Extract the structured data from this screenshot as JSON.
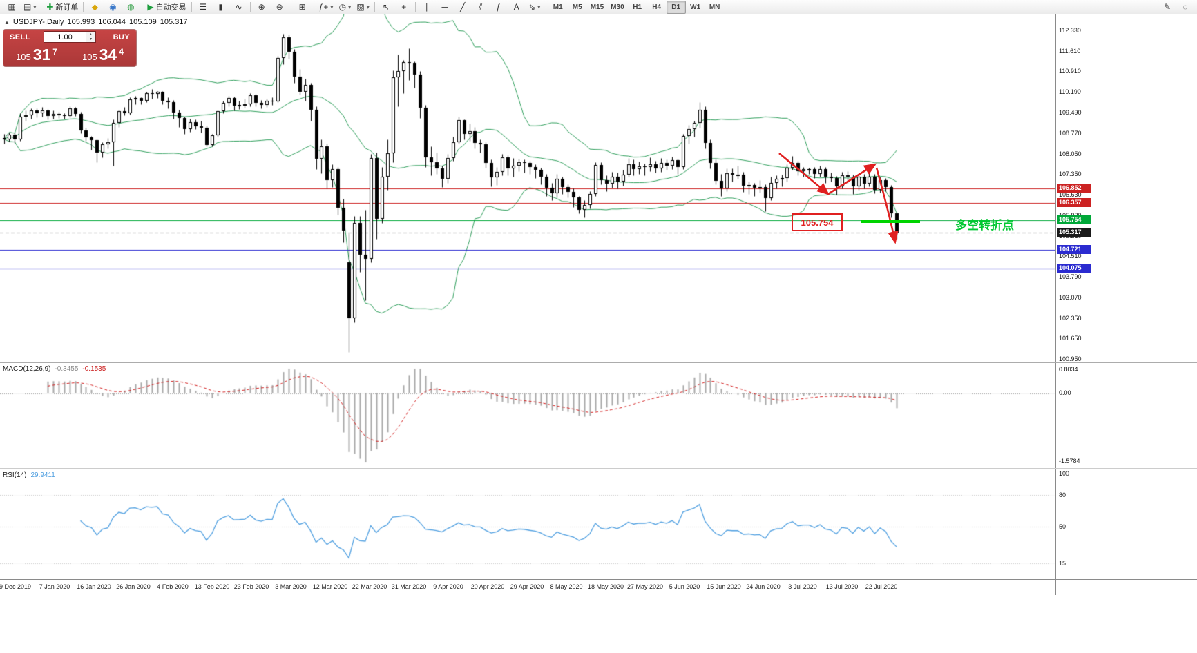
{
  "toolbar": {
    "items": [
      {
        "t": "icon",
        "name": "new-chart-icon",
        "glyph": "▦"
      },
      {
        "t": "icon",
        "name": "profiles-icon",
        "glyph": "▤",
        "caret": true
      },
      {
        "t": "sep"
      },
      {
        "t": "button",
        "name": "new-order-button",
        "glyph": "✚",
        "color": "#1e9e3e",
        "label": "新订单"
      },
      {
        "t": "sep"
      },
      {
        "t": "icon",
        "name": "market-watch-icon",
        "glyph": "◆",
        "color": "#d9a60b"
      },
      {
        "t": "icon",
        "name": "data-window-icon",
        "glyph": "◉",
        "color": "#3a78c9"
      },
      {
        "t": "icon",
        "name": "navigator-icon",
        "glyph": "◍",
        "color": "#2f9e44"
      },
      {
        "t": "sep"
      },
      {
        "t": "button",
        "name": "autotrading-button",
        "glyph": "▶",
        "color": "#1e9e3e",
        "label": "自动交易"
      },
      {
        "t": "sep"
      },
      {
        "t": "icon",
        "name": "bar-chart-icon",
        "glyph": "☰"
      },
      {
        "t": "icon",
        "name": "candlestick-chart-icon",
        "glyph": "▮"
      },
      {
        "t": "icon",
        "name": "line-chart-icon",
        "glyph": "∿"
      },
      {
        "t": "sep"
      },
      {
        "t": "icon",
        "name": "zoom-in-icon",
        "glyph": "⊕"
      },
      {
        "t": "icon",
        "name": "zoom-out-icon",
        "glyph": "⊖"
      },
      {
        "t": "sep"
      },
      {
        "t": "icon",
        "name": "tile-windows-icon",
        "glyph": "⊞"
      },
      {
        "t": "sep"
      },
      {
        "t": "icon",
        "name": "indicators-icon",
        "glyph": "ƒ+",
        "caret": true
      },
      {
        "t": "icon",
        "name": "periods-icon",
        "glyph": "◷",
        "caret": true
      },
      {
        "t": "icon",
        "name": "templates-icon",
        "glyph": "▨",
        "caret": true
      },
      {
        "t": "sep"
      },
      {
        "t": "icon",
        "name": "cursor-icon",
        "glyph": "↖"
      },
      {
        "t": "icon",
        "name": "crosshair-icon",
        "glyph": "+"
      },
      {
        "t": "sep"
      },
      {
        "t": "icon",
        "name": "vertical-line-icon",
        "glyph": "∣"
      },
      {
        "t": "icon",
        "name": "horizontal-line-icon",
        "glyph": "─"
      },
      {
        "t": "icon",
        "name": "trendline-icon",
        "glyph": "╱"
      },
      {
        "t": "icon",
        "name": "channel-icon",
        "glyph": "⫽"
      },
      {
        "t": "icon",
        "name": "fibonacci-icon",
        "glyph": "ƒ"
      },
      {
        "t": "icon",
        "name": "text-icon",
        "glyph": "A"
      },
      {
        "t": "icon",
        "name": "arrows-icon",
        "glyph": "⇘",
        "caret": true
      },
      {
        "t": "sep"
      },
      {
        "t": "tf"
      },
      {
        "t": "flex"
      },
      {
        "t": "icon",
        "name": "pencil-icon",
        "glyph": "✎"
      },
      {
        "t": "icon",
        "name": "chat-icon",
        "glyph": "◌"
      }
    ],
    "timeframes": [
      "M1",
      "M5",
      "M15",
      "M30",
      "H1",
      "H4",
      "D1",
      "W1",
      "MN"
    ],
    "active_timeframe": "D1"
  },
  "chart": {
    "collapse_glyph": "▲",
    "title": "USDJPY-,Daily",
    "ohlc": {
      "open": "105.993",
      "high": "106.044",
      "low": "105.109",
      "close": "105.317"
    },
    "bid": 105.317,
    "one_click": {
      "sell_label": "SELL",
      "buy_label": "BUY",
      "volume": "1.00",
      "spin_up": "▴",
      "spin_down": "▾",
      "sell_prefix": "105",
      "sell_big": "31",
      "sell_sup": "7",
      "buy_prefix": "105",
      "buy_big": "34",
      "buy_sup": "4"
    },
    "price_scale": [
      "112.330",
      "111.610",
      "110.910",
      "110.190",
      "109.490",
      "108.770",
      "108.050",
      "107.350",
      "106.630",
      "105.930",
      "105.210",
      "104.510",
      "103.790",
      "103.070",
      "102.350",
      "101.650",
      "100.950"
    ],
    "price_boxes": [
      {
        "label": "106.852",
        "price": 106.852,
        "color": "#cc2222"
      },
      {
        "label": "106.357",
        "price": 106.357,
        "color": "#cc2222"
      },
      {
        "label": "105.754",
        "price": 105.754,
        "color": "#00a838"
      },
      {
        "label": "105.317",
        "price": 105.317,
        "color": "#1a1a1a"
      },
      {
        "label": "104.721",
        "price": 104.721,
        "color": "#2b2bd0"
      },
      {
        "label": "104.075",
        "price": 104.075,
        "color": "#2b2bd0"
      }
    ],
    "hlines": [
      {
        "price": 106.852,
        "color": "#cc2222"
      },
      {
        "price": 106.357,
        "color": "#cc2222"
      },
      {
        "price": 105.754,
        "color": "#00a838"
      },
      {
        "price": 104.721,
        "color": "#2b2bd0"
      },
      {
        "price": 104.075,
        "color": "#2b2bd0"
      }
    ],
    "annotations": {
      "price_label": "105.754",
      "note_label": "多空转折点"
    },
    "dates": [
      "9 Dec 2019",
      "7 Jan 2020",
      "16 Jan 2020",
      "26 Jan 2020",
      "4 Feb 2020",
      "13 Feb 2020",
      "23 Feb 2020",
      "3 Mar 2020",
      "12 Mar 2020",
      "22 Mar 2020",
      "31 Mar 2020",
      "9 Apr 2020",
      "20 Apr 2020",
      "29 Apr 2020",
      "8 May 2020",
      "18 May 2020",
      "27 May 2020",
      "5 Jun 2020",
      "15 Jun 2020",
      "24 Jun 2020",
      "3 Jul 2020",
      "13 Jul 2020",
      "22 Jul 2020"
    ]
  },
  "macd": {
    "name": "MACD(12,26,9)",
    "value_main": "-0.3455",
    "value_signal": "-0.1535",
    "scale": [
      "0.8034",
      "0.00",
      "-1.5784"
    ]
  },
  "rsi": {
    "name": "RSI(14)",
    "value": "29.9411",
    "scale": [
      "100",
      "80",
      "50",
      "15"
    ]
  },
  "chart_data": {
    "type": "candlestick",
    "symbol": "USDJPY-",
    "period": "Daily",
    "indicators": [
      "Bollinger Bands (20,2)",
      "MACD(12,26,9)",
      "RSI(14)"
    ],
    "colors": {
      "bands": "#2e9e5b",
      "macd_hist": "#a8a8a8",
      "macd_signal": "#d22020",
      "rsi": "#4f9fe0",
      "bull": "#ffffff",
      "bear": "#000000"
    },
    "candles": [
      [
        108.6,
        108.75,
        108.4,
        108.56
      ],
      [
        108.56,
        108.8,
        108.47,
        108.72
      ],
      [
        108.72,
        108.78,
        108.42,
        108.56
      ],
      [
        108.56,
        109.45,
        108.5,
        109.33
      ],
      [
        109.33,
        109.55,
        109.2,
        109.38
      ],
      [
        109.38,
        109.63,
        109.26,
        109.55
      ],
      [
        109.55,
        109.62,
        109.32,
        109.46
      ],
      [
        109.46,
        109.68,
        109.35,
        109.56
      ],
      [
        109.56,
        109.6,
        109.25,
        109.37
      ],
      [
        109.37,
        109.55,
        109.26,
        109.44
      ],
      [
        109.44,
        109.51,
        109.3,
        109.39
      ],
      [
        109.39,
        109.45,
        109.27,
        109.37
      ],
      [
        109.37,
        109.7,
        109.31,
        109.63
      ],
      [
        109.63,
        109.68,
        109.36,
        109.44
      ],
      [
        109.44,
        109.5,
        108.77,
        108.87
      ],
      [
        108.87,
        108.95,
        108.5,
        108.61
      ],
      [
        108.61,
        108.68,
        108.2,
        108.52
      ],
      [
        108.52,
        108.55,
        107.77,
        108.09
      ],
      [
        108.09,
        108.45,
        107.94,
        108.38
      ],
      [
        108.38,
        108.6,
        108.25,
        108.45
      ],
      [
        108.45,
        109.25,
        107.65,
        109.12
      ],
      [
        109.12,
        109.58,
        108.99,
        109.52
      ],
      [
        109.52,
        109.68,
        109.38,
        109.45
      ],
      [
        109.45,
        110.0,
        109.4,
        109.94
      ],
      [
        109.94,
        110.05,
        109.78,
        109.98
      ],
      [
        109.98,
        110.02,
        109.77,
        109.89
      ],
      [
        109.89,
        110.2,
        109.85,
        110.16
      ],
      [
        110.16,
        110.29,
        109.95,
        110.14
      ],
      [
        110.14,
        110.22,
        109.98,
        110.19
      ],
      [
        110.19,
        110.23,
        109.78,
        109.89
      ],
      [
        109.89,
        110.0,
        109.62,
        109.84
      ],
      [
        109.84,
        109.92,
        109.26,
        109.49
      ],
      [
        109.49,
        109.58,
        108.99,
        109.28
      ],
      [
        109.28,
        109.35,
        108.73,
        108.9
      ],
      [
        108.9,
        109.27,
        108.81,
        109.14
      ],
      [
        109.14,
        109.25,
        108.9,
        109.01
      ],
      [
        109.01,
        109.2,
        108.78,
        108.96
      ],
      [
        108.96,
        109.03,
        108.31,
        108.35
      ],
      [
        108.35,
        108.75,
        108.3,
        108.69
      ],
      [
        108.69,
        109.55,
        108.65,
        109.52
      ],
      [
        109.52,
        109.89,
        109.45,
        109.81
      ],
      [
        109.81,
        110.05,
        109.7,
        109.99
      ],
      [
        109.99,
        110.03,
        109.55,
        109.73
      ],
      [
        109.73,
        109.9,
        109.61,
        109.75
      ],
      [
        109.75,
        109.95,
        109.65,
        109.78
      ],
      [
        109.78,
        110.15,
        109.7,
        110.08
      ],
      [
        110.08,
        110.12,
        109.7,
        109.82
      ],
      [
        109.82,
        109.92,
        109.62,
        109.75
      ],
      [
        109.75,
        109.95,
        109.68,
        109.88
      ],
      [
        109.88,
        110.0,
        109.75,
        109.87
      ],
      [
        109.87,
        111.45,
        109.85,
        111.38
      ],
      [
        111.38,
        112.22,
        111.15,
        112.08
      ],
      [
        112.08,
        112.19,
        111.35,
        111.6
      ],
      [
        111.6,
        111.68,
        110.5,
        110.73
      ],
      [
        110.73,
        111.0,
        110.1,
        110.21
      ],
      [
        110.21,
        110.65,
        109.9,
        110.43
      ],
      [
        110.43,
        110.5,
        109.2,
        109.59
      ],
      [
        109.59,
        109.7,
        107.52,
        107.89
      ],
      [
        107.89,
        108.55,
        107.38,
        108.32
      ],
      [
        108.32,
        108.4,
        106.85,
        107.13
      ],
      [
        107.13,
        107.7,
        106.9,
        107.52
      ],
      [
        107.52,
        107.6,
        105.95,
        106.17
      ],
      [
        106.17,
        106.5,
        104.98,
        105.39
      ],
      [
        104.3,
        105.3,
        101.18,
        102.36
      ],
      [
        102.36,
        105.9,
        102.2,
        105.65
      ],
      [
        105.65,
        105.9,
        103.95,
        104.55
      ],
      [
        104.55,
        106.1,
        102.98,
        104.41
      ],
      [
        104.41,
        108.05,
        104.3,
        107.9
      ],
      [
        107.9,
        108.1,
        105.1,
        105.81
      ],
      [
        105.81,
        107.6,
        105.65,
        107.26
      ],
      [
        107.26,
        108.55,
        106.8,
        108.08
      ],
      [
        108.08,
        110.95,
        107.75,
        110.71
      ],
      [
        110.71,
        111.49,
        109.7,
        110.93
      ],
      [
        110.93,
        111.3,
        110.15,
        111.22
      ],
      [
        111.22,
        111.7,
        110.6,
        111.2
      ],
      [
        111.2,
        111.25,
        110.35,
        110.8
      ],
      [
        110.8,
        110.92,
        109.3,
        109.64
      ],
      [
        109.64,
        109.75,
        107.6,
        107.94
      ],
      [
        107.94,
        108.3,
        107.3,
        107.76
      ],
      [
        107.76,
        108.1,
        107.35,
        107.54
      ],
      [
        107.54,
        107.65,
        106.9,
        107.19
      ],
      [
        107.19,
        108.05,
        107.05,
        107.9
      ],
      [
        107.9,
        108.65,
        107.8,
        108.46
      ],
      [
        108.46,
        109.35,
        108.4,
        109.21
      ],
      [
        109.21,
        109.25,
        108.55,
        108.75
      ],
      [
        108.75,
        109.1,
        108.5,
        108.84
      ],
      [
        108.84,
        108.98,
        108.23,
        108.43
      ],
      [
        108.43,
        108.55,
        108.1,
        108.38
      ],
      [
        108.38,
        108.45,
        107.58,
        107.74
      ],
      [
        107.74,
        107.85,
        106.93,
        107.24
      ],
      [
        107.24,
        107.6,
        106.98,
        107.43
      ],
      [
        107.43,
        108.05,
        107.3,
        107.92
      ],
      [
        107.92,
        108.0,
        107.3,
        107.54
      ],
      [
        107.54,
        107.9,
        107.27,
        107.63
      ],
      [
        107.63,
        107.88,
        107.45,
        107.77
      ],
      [
        107.77,
        107.85,
        107.4,
        107.74
      ],
      [
        107.74,
        107.82,
        107.35,
        107.6
      ],
      [
        107.6,
        107.7,
        107.22,
        107.5
      ],
      [
        107.5,
        107.58,
        106.99,
        107.27
      ],
      [
        107.27,
        107.35,
        106.6,
        106.88
      ],
      [
        106.88,
        107.05,
        106.45,
        106.68
      ],
      [
        106.68,
        107.35,
        106.55,
        107.18
      ],
      [
        107.18,
        107.25,
        106.65,
        106.91
      ],
      [
        106.91,
        107.0,
        106.55,
        106.74
      ],
      [
        106.74,
        106.85,
        106.2,
        106.54
      ],
      [
        106.54,
        106.6,
        105.98,
        106.11
      ],
      [
        106.11,
        106.45,
        105.85,
        106.28
      ],
      [
        106.28,
        106.75,
        106.15,
        106.65
      ],
      [
        106.65,
        107.75,
        106.6,
        107.66
      ],
      [
        107.66,
        107.75,
        107.0,
        107.14
      ],
      [
        107.14,
        107.3,
        106.75,
        107.03
      ],
      [
        107.03,
        107.43,
        106.88,
        107.25
      ],
      [
        107.25,
        107.4,
        106.85,
        107.08
      ],
      [
        107.08,
        107.5,
        106.95,
        107.33
      ],
      [
        107.33,
        107.9,
        107.25,
        107.7
      ],
      [
        107.7,
        107.85,
        107.3,
        107.53
      ],
      [
        107.53,
        107.78,
        107.35,
        107.62
      ],
      [
        107.62,
        107.72,
        107.3,
        107.6
      ],
      [
        107.6,
        107.92,
        107.45,
        107.69
      ],
      [
        107.69,
        107.8,
        107.4,
        107.54
      ],
      [
        107.54,
        107.9,
        107.42,
        107.73
      ],
      [
        107.73,
        107.85,
        107.5,
        107.64
      ],
      [
        107.64,
        107.95,
        107.52,
        107.83
      ],
      [
        107.83,
        107.89,
        107.36,
        107.59
      ],
      [
        107.59,
        108.75,
        107.52,
        108.68
      ],
      [
        108.68,
        109.05,
        108.4,
        108.9
      ],
      [
        108.9,
        109.2,
        108.65,
        109.12
      ],
      [
        109.12,
        109.85,
        108.95,
        109.59
      ],
      [
        109.59,
        109.7,
        108.25,
        108.42
      ],
      [
        108.42,
        108.55,
        107.55,
        107.74
      ],
      [
        107.74,
        107.85,
        106.99,
        107.12
      ],
      [
        107.12,
        107.35,
        106.58,
        106.86
      ],
      [
        106.86,
        107.55,
        106.75,
        107.37
      ],
      [
        107.37,
        107.55,
        107.1,
        107.32
      ],
      [
        107.32,
        107.65,
        107.18,
        107.33
      ],
      [
        107.33,
        107.42,
        106.72,
        106.94
      ],
      [
        106.94,
        107.1,
        106.67,
        106.97
      ],
      [
        106.97,
        107.05,
        106.58,
        106.87
      ],
      [
        106.87,
        107.15,
        106.7,
        106.9
      ],
      [
        106.9,
        107.0,
        106.06,
        106.52
      ],
      [
        106.52,
        107.25,
        106.45,
        107.04
      ],
      [
        107.04,
        107.3,
        106.86,
        107.19
      ],
      [
        107.19,
        107.33,
        106.93,
        107.22
      ],
      [
        107.22,
        107.7,
        107.1,
        107.58
      ],
      [
        107.58,
        107.98,
        107.5,
        107.74
      ],
      [
        107.74,
        107.8,
        107.3,
        107.45
      ],
      [
        107.45,
        107.6,
        107.25,
        107.51
      ],
      [
        107.51,
        107.58,
        107.35,
        107.51
      ],
      [
        107.51,
        107.6,
        107.22,
        107.35
      ],
      [
        107.35,
        107.65,
        107.25,
        107.53
      ],
      [
        107.53,
        107.6,
        107.05,
        107.26
      ],
      [
        107.26,
        107.4,
        107.08,
        107.2
      ],
      [
        107.2,
        107.28,
        106.63,
        106.93
      ],
      [
        106.93,
        107.42,
        106.85,
        107.3
      ],
      [
        107.3,
        107.45,
        107.05,
        107.25
      ],
      [
        107.25,
        107.33,
        106.65,
        106.93
      ],
      [
        106.93,
        107.35,
        106.8,
        107.27
      ],
      [
        107.27,
        107.35,
        106.85,
        107.02
      ],
      [
        107.02,
        107.55,
        106.92,
        107.27
      ],
      [
        107.27,
        107.35,
        106.68,
        106.8
      ],
      [
        106.8,
        107.25,
        106.7,
        107.15
      ],
      [
        107.15,
        107.2,
        106.75,
        106.9
      ],
      [
        106.9,
        106.98,
        105.85,
        106.0
      ],
      [
        105.99,
        106.04,
        105.11,
        105.32
      ]
    ]
  }
}
